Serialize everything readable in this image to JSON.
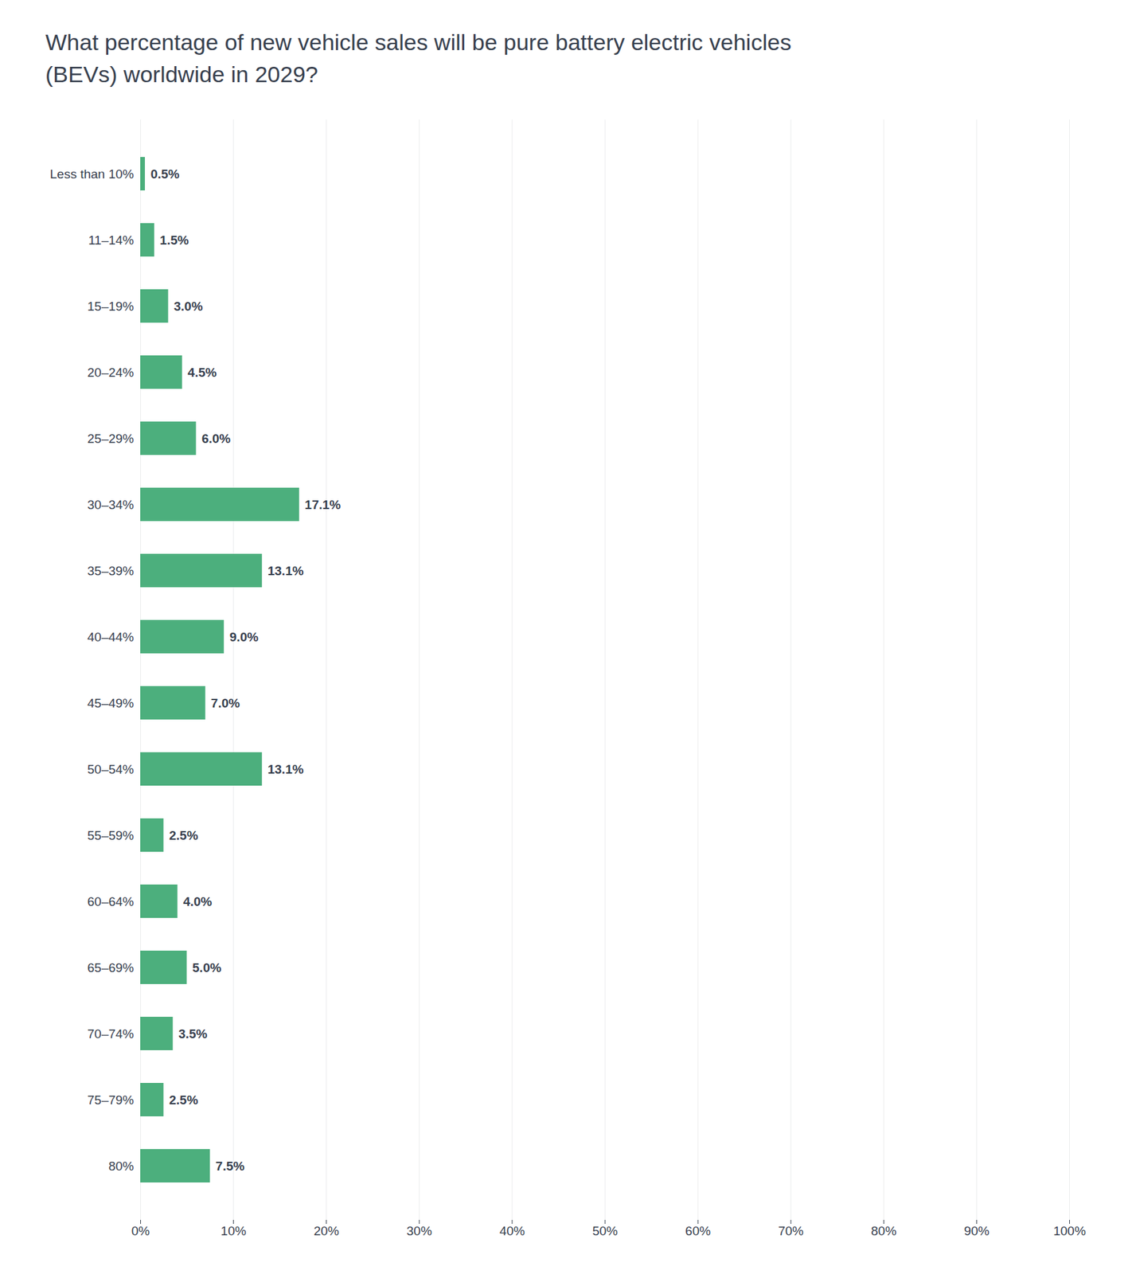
{
  "chart_data": {
    "type": "bar",
    "orientation": "horizontal",
    "title": "What percentage of new vehicle sales will be pure battery electric vehicles\n(BEVs) worldwide in 2029?",
    "categories": [
      "Less than 10%",
      "11–14%",
      "15–19%",
      "20–24%",
      "25–29%",
      "30–34%",
      "35–39%",
      "40–44%",
      "45–49%",
      "50–54%",
      "55–59%",
      "60–64%",
      "65–69%",
      "70–74%",
      "75–79%",
      "80%"
    ],
    "values": [
      0.5,
      1.5,
      3.0,
      4.5,
      6.0,
      17.1,
      13.1,
      9.0,
      7.0,
      13.1,
      2.5,
      4.0,
      5.0,
      3.5,
      2.5,
      7.5
    ],
    "value_labels": [
      "0.5%",
      "1.5%",
      "3.0%",
      "4.5%",
      "6.0%",
      "17.1%",
      "13.1%",
      "9.0%",
      "7.0%",
      "13.1%",
      "2.5%",
      "4.0%",
      "5.0%",
      "3.5%",
      "2.5%",
      "7.5%"
    ],
    "data_labels": true,
    "color": "#4caf7d",
    "xlim": [
      0,
      100
    ],
    "xticks": [
      {
        "value": 0,
        "label": "0%"
      },
      {
        "value": 10,
        "label": "10%"
      },
      {
        "value": 20,
        "label": "20%"
      },
      {
        "value": 30,
        "label": "30%"
      },
      {
        "value": 40,
        "label": "40%"
      },
      {
        "value": 50,
        "label": "50%"
      },
      {
        "value": 60,
        "label": "60%"
      },
      {
        "value": 70,
        "label": "70%"
      },
      {
        "value": 80,
        "label": "80%"
      },
      {
        "value": 90,
        "label": "90%"
      },
      {
        "value": 100,
        "label": "100%"
      }
    ],
    "grid": true
  }
}
